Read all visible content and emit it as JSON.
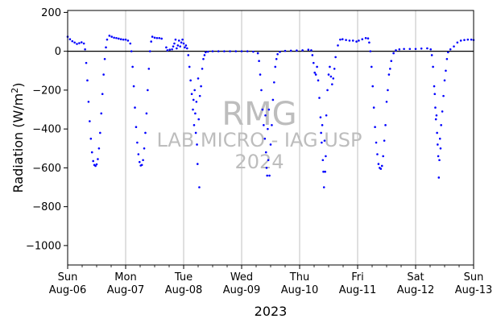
{
  "chart_data": {
    "type": "scatter",
    "xlabel": "2023",
    "ylabel_main": "Radiation (W/m",
    "ylabel_sup": "2",
    "ylabel_close": ")",
    "ylim": [
      -1100,
      210
    ],
    "yticks": [
      200,
      0,
      -200,
      -400,
      -600,
      -800,
      -1000
    ],
    "ytick_labels": [
      "200",
      "0",
      "−200",
      "−400",
      "−600",
      "−800",
      "−1000"
    ],
    "xlim_days": [
      6,
      13
    ],
    "xticks": [
      {
        "day": 6,
        "weekday": "Sun",
        "date": "Aug-06"
      },
      {
        "day": 7,
        "weekday": "Mon",
        "date": "Aug-07"
      },
      {
        "day": 8,
        "weekday": "Tue",
        "date": "Aug-08"
      },
      {
        "day": 9,
        "weekday": "Wed",
        "date": "Aug-09"
      },
      {
        "day": 10,
        "weekday": "Thu",
        "date": "Aug-10"
      },
      {
        "day": 11,
        "weekday": "Fri",
        "date": "Aug-11"
      },
      {
        "day": 12,
        "weekday": "Sat",
        "date": "Aug-12"
      },
      {
        "day": 13,
        "weekday": "Sun",
        "date": "Aug-13"
      }
    ],
    "grid": "x-major",
    "zero_line": 0,
    "marker_color": "#0000ff",
    "series": [
      {
        "points": [
          [
            6.0,
            75
          ],
          [
            6.04,
            62
          ],
          [
            6.08,
            52
          ],
          [
            6.12,
            45
          ],
          [
            6.16,
            38
          ],
          [
            6.2,
            42
          ],
          [
            6.24,
            46
          ],
          [
            6.28,
            40
          ],
          [
            6.3,
            10
          ],
          [
            6.32,
            -60
          ],
          [
            6.34,
            -150
          ],
          [
            6.36,
            -260
          ],
          [
            6.38,
            -360
          ],
          [
            6.4,
            -450
          ],
          [
            6.42,
            -520
          ],
          [
            6.44,
            -565
          ],
          [
            6.46,
            -585
          ],
          [
            6.48,
            -590
          ],
          [
            6.5,
            -582
          ],
          [
            6.52,
            -555
          ],
          [
            6.54,
            -500
          ],
          [
            6.56,
            -420
          ],
          [
            6.58,
            -320
          ],
          [
            6.6,
            -220
          ],
          [
            6.62,
            -120
          ],
          [
            6.64,
            -40
          ],
          [
            6.66,
            20
          ],
          [
            6.68,
            60
          ],
          [
            6.72,
            80
          ],
          [
            6.76,
            75
          ],
          [
            6.8,
            70
          ],
          [
            6.84,
            68
          ],
          [
            6.88,
            65
          ],
          [
            6.92,
            62
          ],
          [
            6.96,
            60
          ],
          [
            7.0,
            60
          ],
          [
            7.04,
            55
          ],
          [
            7.08,
            40
          ],
          [
            7.1,
            0
          ],
          [
            7.12,
            -80
          ],
          [
            7.14,
            -180
          ],
          [
            7.16,
            -290
          ],
          [
            7.18,
            -390
          ],
          [
            7.2,
            -470
          ],
          [
            7.22,
            -530
          ],
          [
            7.24,
            -570
          ],
          [
            7.26,
            -588
          ],
          [
            7.28,
            -585
          ],
          [
            7.3,
            -560
          ],
          [
            7.32,
            -500
          ],
          [
            7.34,
            -420
          ],
          [
            7.36,
            -320
          ],
          [
            7.38,
            -200
          ],
          [
            7.4,
            -90
          ],
          [
            7.42,
            0
          ],
          [
            7.44,
            50
          ],
          [
            7.46,
            75
          ],
          [
            7.5,
            70
          ],
          [
            7.54,
            68
          ],
          [
            7.58,
            68
          ],
          [
            7.62,
            65
          ],
          [
            7.7,
            20
          ],
          [
            7.72,
            5
          ],
          [
            7.76,
            8
          ],
          [
            7.8,
            10
          ],
          [
            7.82,
            25
          ],
          [
            7.84,
            40
          ],
          [
            7.86,
            60
          ],
          [
            7.88,
            15
          ],
          [
            7.9,
            30
          ],
          [
            7.92,
            55
          ],
          [
            7.94,
            25
          ],
          [
            7.96,
            45
          ],
          [
            7.98,
            60
          ],
          [
            8.0,
            40
          ],
          [
            8.02,
            20
          ],
          [
            8.04,
            30
          ],
          [
            8.06,
            15
          ],
          [
            8.08,
            -20
          ],
          [
            8.1,
            -80
          ],
          [
            8.12,
            -150
          ],
          [
            8.14,
            -220
          ],
          [
            8.16,
            -300
          ],
          [
            8.17,
            -250
          ],
          [
            8.18,
            -380
          ],
          [
            8.19,
            -200
          ],
          [
            8.2,
            -320
          ],
          [
            8.21,
            -420
          ],
          [
            8.22,
            -260
          ],
          [
            8.23,
            -480
          ],
          [
            8.24,
            -580
          ],
          [
            8.25,
            -140
          ],
          [
            8.26,
            -350
          ],
          [
            8.27,
            -700
          ],
          [
            8.28,
            -230
          ],
          [
            8.3,
            -180
          ],
          [
            8.32,
            -90
          ],
          [
            8.34,
            -40
          ],
          [
            8.36,
            -20
          ],
          [
            8.38,
            -5
          ],
          [
            8.42,
            -2
          ],
          [
            8.5,
            0
          ],
          [
            8.6,
            0
          ],
          [
            8.7,
            0
          ],
          [
            8.8,
            0
          ],
          [
            8.9,
            0
          ],
          [
            9.0,
            0
          ],
          [
            9.1,
            0
          ],
          [
            9.2,
            -2
          ],
          [
            9.28,
            -10
          ],
          [
            9.3,
            -50
          ],
          [
            9.32,
            -120
          ],
          [
            9.34,
            -200
          ],
          [
            9.36,
            -300
          ],
          [
            9.38,
            -380
          ],
          [
            9.4,
            -450
          ],
          [
            9.41,
            -330
          ],
          [
            9.42,
            -520
          ],
          [
            9.43,
            -600
          ],
          [
            9.44,
            -640
          ],
          [
            9.45,
            -400
          ],
          [
            9.46,
            -560
          ],
          [
            9.47,
            -300
          ],
          [
            9.48,
            -640
          ],
          [
            9.5,
            -480
          ],
          [
            9.52,
            -380
          ],
          [
            9.54,
            -250
          ],
          [
            9.56,
            -160
          ],
          [
            9.58,
            -80
          ],
          [
            9.6,
            -40
          ],
          [
            9.62,
            -15
          ],
          [
            9.66,
            -3
          ],
          [
            9.75,
            2
          ],
          [
            9.85,
            3
          ],
          [
            9.95,
            4
          ],
          [
            10.05,
            5
          ],
          [
            10.15,
            8
          ],
          [
            10.2,
            5
          ],
          [
            10.22,
            -20
          ],
          [
            10.24,
            -60
          ],
          [
            10.26,
            -110
          ],
          [
            10.28,
            -120
          ],
          [
            10.3,
            -80
          ],
          [
            10.32,
            -150
          ],
          [
            10.34,
            -240
          ],
          [
            10.36,
            -340
          ],
          [
            10.37,
            -420
          ],
          [
            10.38,
            -470
          ],
          [
            10.39,
            -380
          ],
          [
            10.4,
            -560
          ],
          [
            10.41,
            -620
          ],
          [
            10.42,
            -700
          ],
          [
            10.43,
            -460
          ],
          [
            10.44,
            -620
          ],
          [
            10.45,
            -540
          ],
          [
            10.46,
            -330
          ],
          [
            10.48,
            -200
          ],
          [
            10.5,
            -120
          ],
          [
            10.52,
            -80
          ],
          [
            10.54,
            -130
          ],
          [
            10.56,
            -170
          ],
          [
            10.58,
            -140
          ],
          [
            10.6,
            -90
          ],
          [
            10.62,
            -30
          ],
          [
            10.66,
            30
          ],
          [
            10.7,
            60
          ],
          [
            10.74,
            62
          ],
          [
            10.8,
            58
          ],
          [
            10.86,
            55
          ],
          [
            10.92,
            55
          ],
          [
            10.98,
            50
          ],
          [
            11.02,
            55
          ],
          [
            11.08,
            62
          ],
          [
            11.14,
            68
          ],
          [
            11.18,
            66
          ],
          [
            11.2,
            45
          ],
          [
            11.22,
            0
          ],
          [
            11.24,
            -80
          ],
          [
            11.26,
            -180
          ],
          [
            11.28,
            -290
          ],
          [
            11.3,
            -390
          ],
          [
            11.32,
            -470
          ],
          [
            11.34,
            -530
          ],
          [
            11.36,
            -580
          ],
          [
            11.38,
            -600
          ],
          [
            11.4,
            -605
          ],
          [
            11.42,
            -590
          ],
          [
            11.44,
            -540
          ],
          [
            11.46,
            -460
          ],
          [
            11.48,
            -380
          ],
          [
            11.5,
            -260
          ],
          [
            11.52,
            -200
          ],
          [
            11.54,
            -120
          ],
          [
            11.56,
            -90
          ],
          [
            11.58,
            -50
          ],
          [
            11.62,
            -10
          ],
          [
            11.66,
            5
          ],
          [
            11.72,
            10
          ],
          [
            11.8,
            12
          ],
          [
            11.9,
            12
          ],
          [
            12.0,
            12
          ],
          [
            12.1,
            14
          ],
          [
            12.2,
            15
          ],
          [
            12.26,
            10
          ],
          [
            12.28,
            -20
          ],
          [
            12.3,
            -80
          ],
          [
            12.32,
            -180
          ],
          [
            12.33,
            -220
          ],
          [
            12.34,
            -290
          ],
          [
            12.35,
            -350
          ],
          [
            12.36,
            -330
          ],
          [
            12.37,
            -420
          ],
          [
            12.38,
            -480
          ],
          [
            12.39,
            -540
          ],
          [
            12.4,
            -650
          ],
          [
            12.41,
            -560
          ],
          [
            12.42,
            -450
          ],
          [
            12.43,
            -500
          ],
          [
            12.44,
            -380
          ],
          [
            12.46,
            -310
          ],
          [
            12.48,
            -230
          ],
          [
            12.5,
            -150
          ],
          [
            12.52,
            -100
          ],
          [
            12.54,
            -40
          ],
          [
            12.56,
            -5
          ],
          [
            12.6,
            10
          ],
          [
            12.66,
            25
          ],
          [
            12.72,
            45
          ],
          [
            12.78,
            55
          ],
          [
            12.84,
            58
          ],
          [
            12.9,
            60
          ],
          [
            12.96,
            60
          ],
          [
            13.0,
            58
          ]
        ]
      }
    ],
    "watermark": {
      "line1": "RMG",
      "line2": "LAB MICRO - IAG USP",
      "line3": "2024"
    }
  }
}
